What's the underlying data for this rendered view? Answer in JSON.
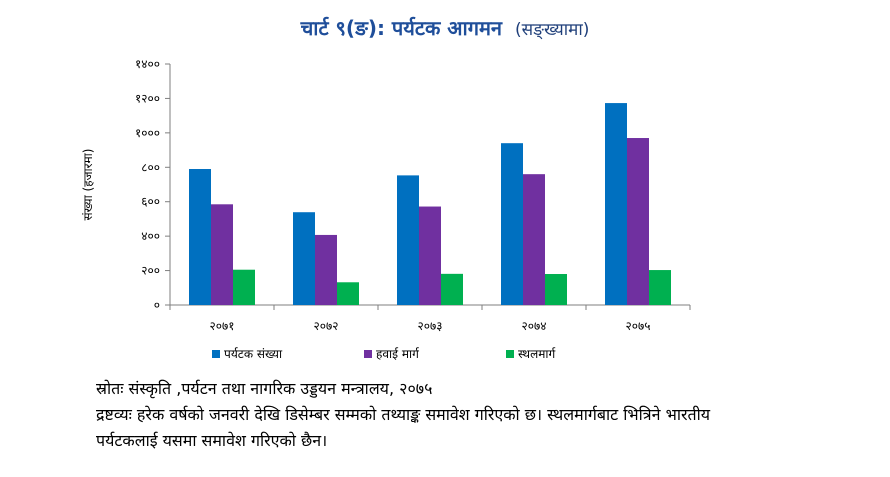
{
  "title": {
    "main": "चार्ट ९(ङ): पर्यटक आगमन",
    "sub": "(सङ्ख्यामा)"
  },
  "chart_data": {
    "type": "bar",
    "categories": [
      "२०७१",
      "२०७२",
      "२०७३",
      "२०७४",
      "२०७५"
    ],
    "series": [
      {
        "name": "पर्यटक संख्या",
        "color": "#0070c0",
        "values": [
          790,
          539,
          753,
          940,
          1173
        ]
      },
      {
        "name": "हवाई मार्ग",
        "color": "#7030a0",
        "values": [
          585,
          407,
          572,
          760,
          970
        ]
      },
      {
        "name": "स्थलमार्ग",
        "color": "#00b050",
        "values": [
          205,
          132,
          181,
          180,
          203
        ]
      }
    ],
    "ylim": [
      0,
      1400
    ],
    "yticks": [
      0,
      200,
      400,
      600,
      800,
      1000,
      1200,
      1400
    ],
    "ytick_labels": [
      "०",
      "२००",
      "४००",
      "६००",
      "८००",
      "१०००",
      "१२००",
      "१४००"
    ],
    "ylabel": "संख्या (हजारमा)",
    "xlabel": "",
    "legend_position": "bottom",
    "grid": false
  },
  "source": {
    "line1": "स्रोतः संस्कृति ,पर्यटन तथा नागरिक उड्डयन मन्त्रालय, २०७५",
    "line2": "द्रष्टव्यः हरेक वर्षको जनवरी देखि डिसेम्बर सम्मको तथ्याङ्क समावेश गरिएको छ। स्थलमार्गबाट भित्रिने भारतीय",
    "line3": "पर्यटकलाई यसमा समावेश गरिएको छैन।"
  }
}
